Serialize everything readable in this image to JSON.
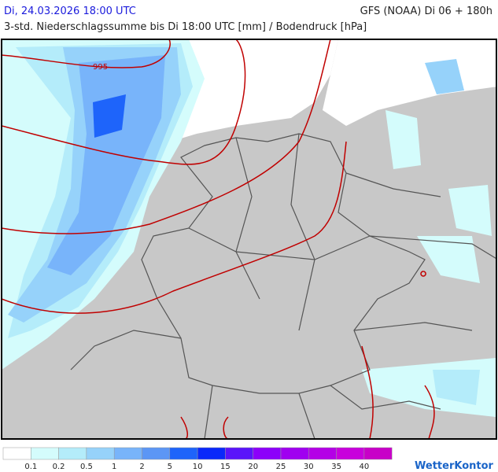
{
  "header": {
    "date": "Di, 24.03.2026 18:00 UTC",
    "model": "GFS (NOAA) Di 06 + 180h",
    "subtitle": "3-std. Niederschlagssumme bis Di 18:00 UTC [mm] / Bodendruck [hPa]"
  },
  "map": {
    "isobar_label": "995"
  },
  "legend": {
    "colors": [
      "#ffffff",
      "#d4fcfc",
      "#b4ecfa",
      "#96d2fa",
      "#78b4fa",
      "#5c96f5",
      "#1e64fa",
      "#0a28fa",
      "#5a14fa",
      "#8c00fa",
      "#a000f0",
      "#b400e6",
      "#c800dc",
      "#c800c8"
    ],
    "labels": [
      0.1,
      0.2,
      0.5,
      1,
      2,
      5,
      10,
      15,
      20,
      25,
      30,
      35,
      40
    ]
  },
  "logo": "WetterKontor"
}
